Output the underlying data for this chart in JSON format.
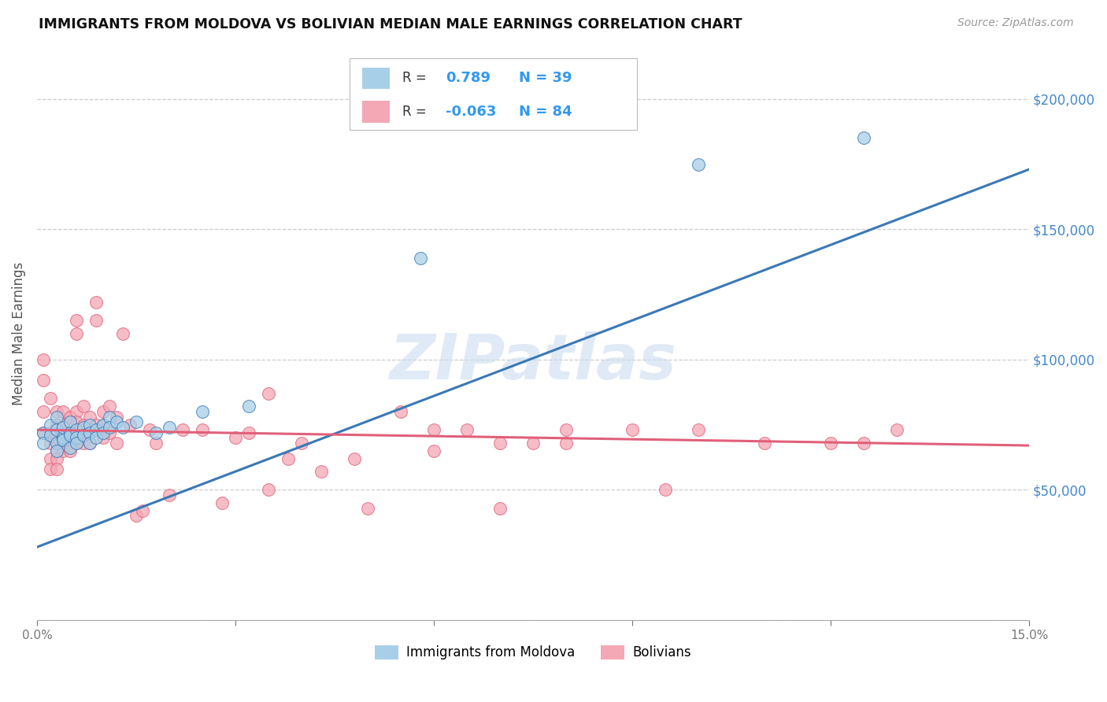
{
  "title": "IMMIGRANTS FROM MOLDOVA VS BOLIVIAN MEDIAN MALE EARNINGS CORRELATION CHART",
  "source": "Source: ZipAtlas.com",
  "ylabel": "Median Male Earnings",
  "right_yticks": [
    0,
    50000,
    100000,
    150000,
    200000
  ],
  "right_ytick_labels": [
    "",
    "$50,000",
    "$100,000",
    "$150,000",
    "$200,000"
  ],
  "xlim": [
    0.0,
    0.15
  ],
  "ylim": [
    0,
    220000
  ],
  "moldova_R": 0.789,
  "moldova_N": 39,
  "bolivia_R": -0.063,
  "bolivia_N": 84,
  "moldova_color": "#a8cfe8",
  "moldova_line_color": "#3a78b5",
  "bolivia_color": "#f4a7b5",
  "bolivia_line_color": "#e0607a",
  "legend_label_moldova": "Immigrants from Moldova",
  "legend_label_bolivia": "Bolivians",
  "watermark": "ZIPatlas",
  "moldova_line_x0": 0.0,
  "moldova_line_y0": 28000,
  "moldova_line_x1": 0.15,
  "moldova_line_y1": 173000,
  "bolivia_line_x0": 0.0,
  "bolivia_line_y0": 73000,
  "bolivia_line_x1": 0.15,
  "bolivia_line_y1": 67000,
  "moldova_scatter_x": [
    0.001,
    0.001,
    0.002,
    0.002,
    0.003,
    0.003,
    0.003,
    0.003,
    0.004,
    0.004,
    0.004,
    0.005,
    0.005,
    0.005,
    0.005,
    0.006,
    0.006,
    0.006,
    0.007,
    0.007,
    0.008,
    0.008,
    0.008,
    0.009,
    0.009,
    0.01,
    0.01,
    0.011,
    0.011,
    0.012,
    0.013,
    0.015,
    0.018,
    0.02,
    0.025,
    0.032,
    0.058,
    0.1,
    0.125
  ],
  "moldova_scatter_y": [
    72000,
    68000,
    75000,
    71000,
    78000,
    73000,
    68000,
    65000,
    70000,
    74000,
    69000,
    76000,
    72000,
    66000,
    71000,
    73000,
    70000,
    68000,
    74000,
    71000,
    75000,
    72000,
    68000,
    73000,
    70000,
    75000,
    72000,
    78000,
    74000,
    76000,
    74000,
    76000,
    72000,
    74000,
    80000,
    82000,
    139000,
    175000,
    185000
  ],
  "bolivia_scatter_x": [
    0.001,
    0.001,
    0.001,
    0.001,
    0.002,
    0.002,
    0.002,
    0.002,
    0.002,
    0.003,
    0.003,
    0.003,
    0.003,
    0.003,
    0.003,
    0.003,
    0.004,
    0.004,
    0.004,
    0.004,
    0.004,
    0.004,
    0.005,
    0.005,
    0.005,
    0.005,
    0.006,
    0.006,
    0.006,
    0.006,
    0.006,
    0.006,
    0.007,
    0.007,
    0.007,
    0.007,
    0.008,
    0.008,
    0.008,
    0.009,
    0.009,
    0.009,
    0.01,
    0.01,
    0.01,
    0.011,
    0.011,
    0.012,
    0.012,
    0.013,
    0.014,
    0.015,
    0.016,
    0.017,
    0.018,
    0.02,
    0.022,
    0.025,
    0.028,
    0.03,
    0.032,
    0.035,
    0.038,
    0.04,
    0.043,
    0.048,
    0.055,
    0.06,
    0.065,
    0.07,
    0.075,
    0.08,
    0.09,
    0.1,
    0.11,
    0.12,
    0.125,
    0.13,
    0.035,
    0.05,
    0.06,
    0.07,
    0.08,
    0.095
  ],
  "bolivia_scatter_y": [
    100000,
    92000,
    80000,
    72000,
    85000,
    72000,
    68000,
    62000,
    58000,
    80000,
    75000,
    70000,
    65000,
    62000,
    58000,
    73000,
    72000,
    68000,
    75000,
    65000,
    71000,
    80000,
    78000,
    72000,
    68000,
    65000,
    115000,
    110000,
    80000,
    76000,
    72000,
    68000,
    75000,
    71000,
    68000,
    82000,
    78000,
    72000,
    68000,
    122000,
    115000,
    75000,
    80000,
    75000,
    70000,
    82000,
    72000,
    78000,
    68000,
    110000,
    75000,
    40000,
    42000,
    73000,
    68000,
    48000,
    73000,
    73000,
    45000,
    70000,
    72000,
    87000,
    62000,
    68000,
    57000,
    62000,
    80000,
    73000,
    73000,
    68000,
    68000,
    73000,
    73000,
    73000,
    68000,
    68000,
    68000,
    73000,
    50000,
    43000,
    65000,
    43000,
    68000,
    50000
  ]
}
